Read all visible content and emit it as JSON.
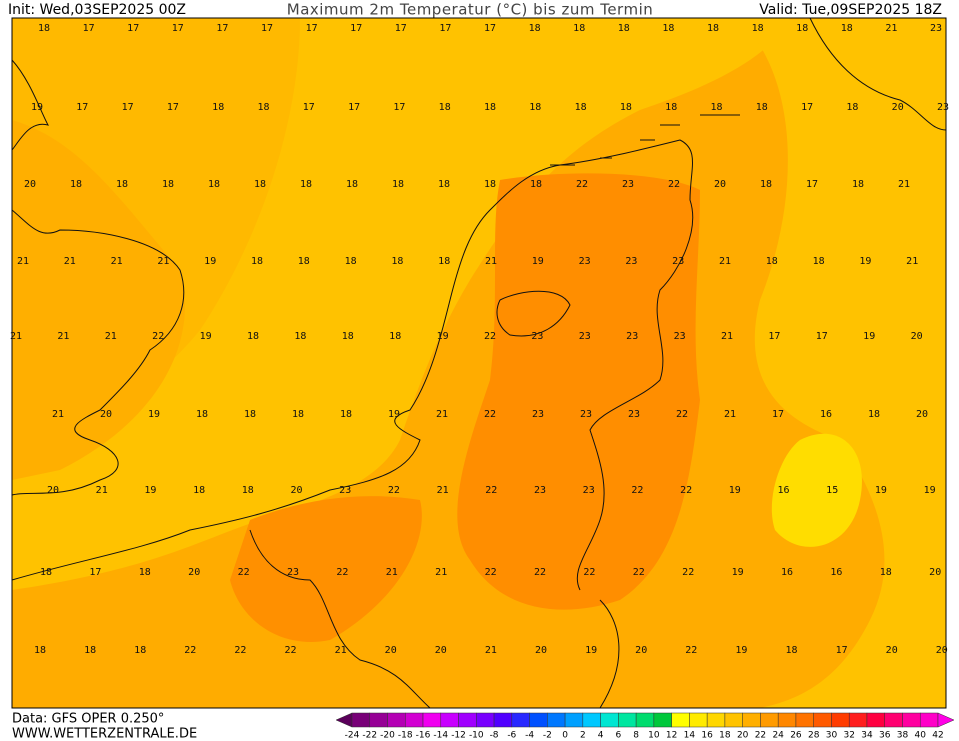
{
  "header": {
    "init": "Init: Wed,03SEP2025 00Z",
    "title": "Maximum 2m Temperatur (°C) bis zum Termin",
    "valid": "Valid: Tue,09SEP2025 18Z"
  },
  "map_labels": [
    [
      18,
      17,
      17,
      17,
      17,
      17,
      17,
      17,
      17,
      17,
      17,
      18,
      18,
      18,
      18,
      18,
      18,
      18,
      18,
      21,
      23
    ],
    [
      19,
      17,
      17,
      17,
      18,
      18,
      17,
      17,
      17,
      18,
      18,
      18,
      18,
      18,
      18,
      18,
      18,
      17,
      18,
      20,
      23
    ],
    [
      20,
      18,
      18,
      18,
      18,
      18,
      18,
      18,
      18,
      18,
      18,
      18,
      22,
      23,
      22,
      20,
      18,
      17,
      18,
      21
    ],
    [
      21,
      21,
      21,
      21,
      19,
      18,
      18,
      18,
      18,
      18,
      21,
      19,
      23,
      23,
      23,
      21,
      18,
      18,
      19,
      21
    ],
    [
      21,
      21,
      21,
      22,
      19,
      18,
      18,
      18,
      18,
      19,
      22,
      23,
      23,
      23,
      23,
      21,
      17,
      17,
      19,
      20
    ],
    [
      21,
      20,
      19,
      18,
      18,
      18,
      18,
      19,
      21,
      22,
      23,
      23,
      23,
      22,
      21,
      17,
      16,
      18,
      20
    ],
    [
      20,
      21,
      19,
      18,
      18,
      20,
      23,
      22,
      21,
      22,
      23,
      23,
      22,
      22,
      19,
      16,
      15,
      19,
      19
    ],
    [
      18,
      17,
      18,
      20,
      22,
      23,
      22,
      21,
      21,
      22,
      22,
      22,
      22,
      22,
      19,
      16,
      16,
      18,
      20
    ],
    [
      18,
      18,
      18,
      22,
      22,
      22,
      21,
      20,
      20,
      21,
      20,
      19,
      20,
      22,
      19,
      18,
      17,
      20,
      20
    ]
  ],
  "footer": {
    "data": "Data: GFS OPER 0.250°",
    "site": "WWW.WETTERZENTRALE.DE"
  },
  "colorbar": {
    "ticks": [
      -24,
      -22,
      -20,
      -18,
      -16,
      -14,
      -12,
      -10,
      -8,
      -6,
      -4,
      -2,
      0,
      2,
      4,
      6,
      8,
      10,
      12,
      14,
      16,
      18,
      20,
      22,
      24,
      26,
      28,
      30,
      32,
      34,
      36,
      38,
      40,
      42
    ],
    "colors": [
      "#5a005a",
      "#780078",
      "#960096",
      "#b400b4",
      "#d200d2",
      "#f000f0",
      "#c800ff",
      "#a000ff",
      "#7800ff",
      "#5000ff",
      "#2828ff",
      "#0050ff",
      "#0078ff",
      "#00a0ff",
      "#00c8ff",
      "#00e6d2",
      "#00e6a0",
      "#00dc6e",
      "#00c83c",
      "#ffff00",
      "#ffeb00",
      "#ffd700",
      "#ffc300",
      "#ffaf00",
      "#ff9b00",
      "#ff8700",
      "#ff7300",
      "#ff5a00",
      "#ff3c00",
      "#ff1e1e",
      "#ff0040",
      "#ff0070",
      "#ff00a0",
      "#ff00c8",
      "#ff00e6"
    ]
  }
}
